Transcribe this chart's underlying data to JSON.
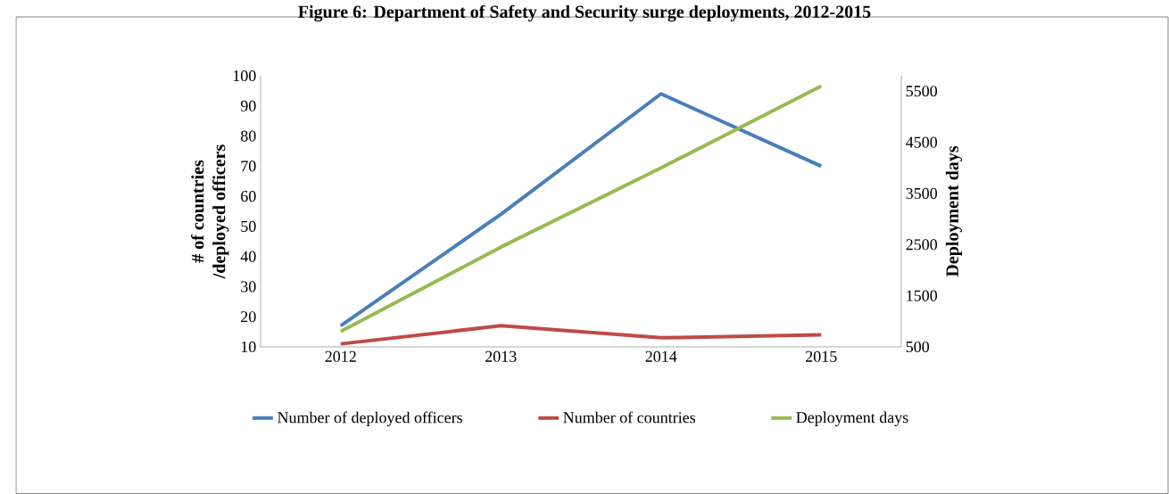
{
  "chart_data": {
    "type": "line",
    "title": "Figure 6: Department of Safety and Security surge deployments, 2012-2015",
    "categories": [
      "2012",
      "2013",
      "2014",
      "2015"
    ],
    "series": [
      {
        "name": "Number of deployed officers",
        "color": "#4a7ebb",
        "values": [
          17,
          54,
          94,
          70
        ]
      },
      {
        "name": "Number of countries",
        "color": "#be4b48",
        "values": [
          11,
          17,
          13,
          14
        ]
      },
      {
        "name": "Deployment days",
        "color": "#98b954",
        "values": [
          800,
          2450,
          4000,
          5600
        ],
        "axis": "y2"
      }
    ],
    "ylabel": "#  of countries\n/deployed officers",
    "y2label": "Deployment days",
    "ylim": [
      10,
      100
    ],
    "yticks": [
      10,
      20,
      30,
      40,
      50,
      60,
      70,
      80,
      90,
      100
    ],
    "y2lim": [
      500,
      5800
    ],
    "y2ticks": [
      500,
      1500,
      2500,
      3500,
      4500,
      5500
    ],
    "grid": false,
    "legend": "bottom",
    "marker": "none",
    "line_style": "solid"
  }
}
